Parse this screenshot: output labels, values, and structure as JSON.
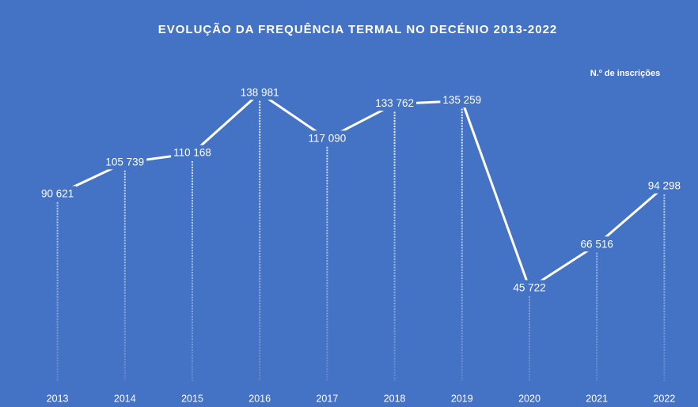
{
  "chart_data": {
    "type": "line",
    "title": "EVOLUÇÃO DA FREQUÊNCIA TERMAL NO DECÉNIO 2013-2022",
    "annotation": "N.º de inscrições",
    "categories": [
      "2013",
      "2014",
      "2015",
      "2016",
      "2017",
      "2018",
      "2019",
      "2020",
      "2021",
      "2022"
    ],
    "values": [
      90621,
      105739,
      110168,
      138981,
      117090,
      133762,
      135259,
      45722,
      66516,
      94298
    ],
    "value_labels": [
      "90 621",
      "105 739",
      "110 168",
      "138 981",
      "117 090",
      "133 762",
      "135 259",
      "45 722",
      "66 516",
      "94 298"
    ],
    "color": "#ffffff",
    "background": "#4472c4",
    "ylim": [
      0,
      160000
    ]
  }
}
